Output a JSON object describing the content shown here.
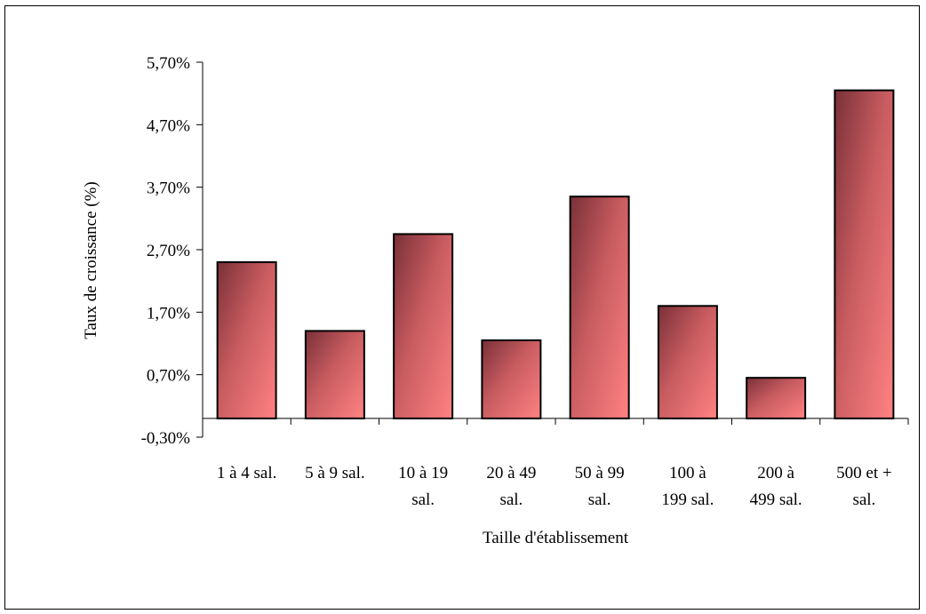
{
  "chart_data": {
    "type": "bar",
    "xlabel": "Taille d'établissement",
    "ylabel": "Taux de croissance (%)",
    "categories": [
      [
        "1 à 4 sal."
      ],
      [
        "5 à 9 sal."
      ],
      [
        "10 à 19",
        "sal."
      ],
      [
        "20 à 49",
        "sal."
      ],
      [
        "50 à 99",
        "sal."
      ],
      [
        "100 à",
        "199 sal."
      ],
      [
        "200 à",
        "499 sal."
      ],
      [
        "500 et +",
        "sal."
      ]
    ],
    "values": [
      2.5,
      1.4,
      2.95,
      1.25,
      3.55,
      1.8,
      0.65,
      5.25
    ],
    "y_ticks": [
      -0.3,
      0.7,
      1.7,
      2.7,
      3.7,
      4.7,
      5.7
    ],
    "y_tick_labels": [
      "-0,30%",
      "0,70%",
      "1,70%",
      "2,70%",
      "3,70%",
      "4,70%",
      "5,70%"
    ],
    "ylim": [
      -0.3,
      5.7
    ],
    "bar_colors": {
      "dark": "#7a3038",
      "mid": "#c85c60",
      "light": "#ff8282"
    },
    "grid": false,
    "legend": "none"
  }
}
